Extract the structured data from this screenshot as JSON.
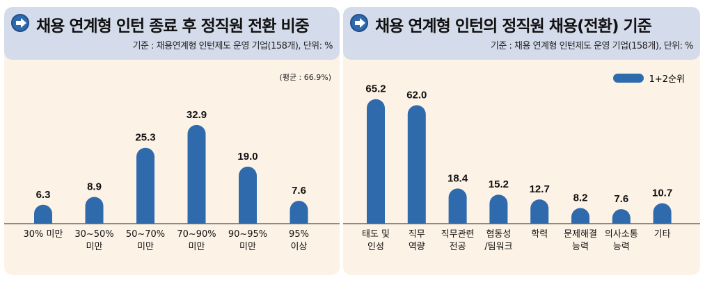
{
  "colors": {
    "bar": "#2f6aad"
  },
  "chart_data": [
    {
      "type": "bar",
      "title": "채용 연계형 인턴 종료 후 정직원 전환 비중",
      "subtitle": "기준 : 채용연계형 인턴제도 운영 기업(158개), 단위: %",
      "annotation": "(평균 : 66.9%)",
      "categories": [
        "30% 미만",
        "30~50%\n미만",
        "50~70%\n미만",
        "70~90%\n미만",
        "90~95%\n미만",
        "95%\n이상"
      ],
      "values": [
        6.3,
        8.9,
        25.3,
        32.9,
        19.0,
        7.6
      ],
      "ylim": [
        0,
        35
      ],
      "xlabel": "",
      "ylabel": ""
    },
    {
      "type": "bar",
      "title": "채용 연계형 인턴의 정직원 채용(전환) 기준",
      "subtitle": "기준 : 채용 연계형 인턴제도 운영 기업(158개), 단위: %",
      "legend": [
        "1+2순위"
      ],
      "categories": [
        "태도 및\n인성",
        "직무\n역량",
        "직무관련\n전공",
        "협동성\n/팀워크",
        "학력",
        "문제해결\n능력",
        "의사소통\n능력",
        "기타"
      ],
      "values": [
        65.2,
        62.0,
        18.4,
        15.2,
        12.7,
        8.2,
        7.6,
        10.7
      ],
      "ylim": [
        0,
        70
      ],
      "xlabel": "",
      "ylabel": ""
    }
  ]
}
